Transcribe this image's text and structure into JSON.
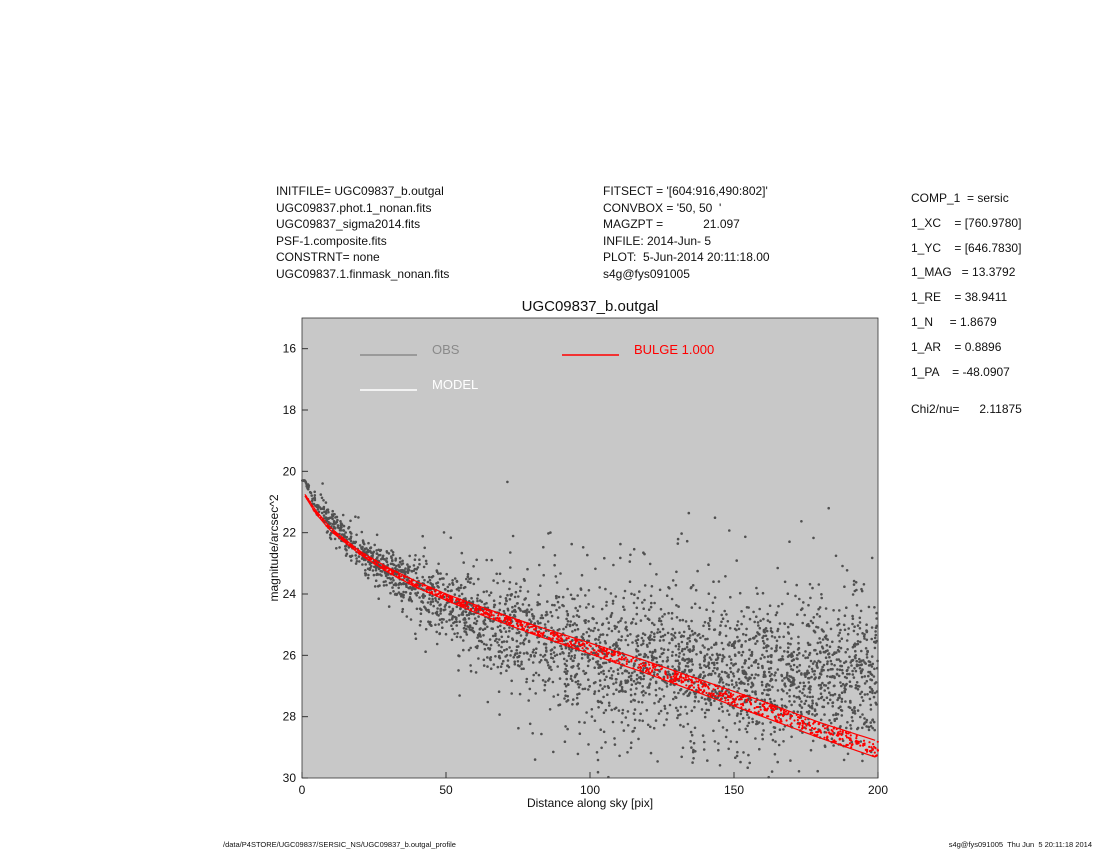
{
  "header_left": [
    "INITFILE= UGC09837_b.outgal",
    "UGC09837.phot.1_nonan.fits",
    "UGC09837_sigma2014.fits",
    "PSF-1.composite.fits",
    "CONSTRNT= none",
    "UGC09837.1.finmask_nonan.fits"
  ],
  "header_mid": [
    "FITSECT = '[604:916,490:802]'",
    "CONVBOX = '50, 50  '",
    "MAGZPT =            21.097",
    "INFILE: 2014-Jun- 5",
    "PLOT:  5-Jun-2014 20:11:18.00",
    "s4g@fys091005"
  ],
  "components": [
    "COMP_1  = sersic",
    "1_XC    = [760.9780]",
    "1_YC    = [646.7830]",
    "1_MAG   = 13.3792",
    "1_RE    = 38.9411",
    "1_N     = 1.8679",
    "1_AR    = 0.8896",
    "1_PA    = -48.0907"
  ],
  "chi2": "Chi2/nu=      2.11875",
  "footer_left": "/data/P4STORE/UGC09837/SERSIC_NS/UGC09837_b.outgal_profile",
  "footer_right": "s4g@fys091005  Thu Jun  5 20:11:18 2014",
  "colors": {
    "plot_bg": "#c8c8c8",
    "obs": "#505050",
    "obs_legend": "#8a8a8a",
    "model": "#ffffff",
    "bulge": "#ff0000"
  },
  "chart_data": {
    "type": "scatter",
    "title": "UGC09837_b.outgal",
    "xlabel": "Distance along sky [pix]",
    "ylabel": "magnitude/arcsec^2",
    "xlim": [
      0,
      200
    ],
    "ylim": [
      30,
      15
    ],
    "y_inverted": true,
    "xticks": [
      0,
      50,
      100,
      150,
      200
    ],
    "yticks": [
      16,
      18,
      20,
      22,
      24,
      26,
      28,
      30
    ],
    "grid": false,
    "legend": [
      {
        "name": "OBS",
        "color": "#8a8a8a"
      },
      {
        "name": "MODEL",
        "color": "#ffffff"
      },
      {
        "name": "BULGE  1.000",
        "color": "#ff0000"
      }
    ],
    "series": [
      {
        "name": "OBS",
        "description_points": "scattered pixel magnitudes around profile",
        "trend_x": [
          1,
          5,
          10,
          20,
          30,
          40,
          50,
          60,
          80,
          100,
          120,
          140,
          160,
          180,
          200
        ],
        "trend_y": [
          20.3,
          21.1,
          21.7,
          22.6,
          23.3,
          23.8,
          24.3,
          24.7,
          25.4,
          25.9,
          26.2,
          26.5,
          26.6,
          26.6,
          26.6
        ],
        "scatter_start": [
          0,
          0.2,
          0.3,
          0.4,
          0.5,
          0.6,
          0.8,
          1.0,
          1.3,
          1.5,
          1.6,
          1.6,
          1.6,
          1.6,
          1.6
        ]
      },
      {
        "name": "BULGE  1.000",
        "upper_x": [
          1,
          5,
          10,
          20,
          30,
          40,
          50,
          60,
          80,
          100,
          120,
          140,
          160,
          180,
          200
        ],
        "upper_y": [
          20.75,
          21.3,
          21.85,
          22.6,
          23.15,
          23.6,
          24.0,
          24.35,
          25.0,
          25.6,
          26.2,
          26.85,
          27.5,
          28.2,
          28.8
        ],
        "lower_x": [
          1,
          5,
          10,
          20,
          30,
          40,
          50,
          60,
          80,
          100,
          120,
          140,
          160,
          180,
          200
        ],
        "lower_y": [
          20.8,
          21.4,
          21.95,
          22.7,
          23.3,
          23.8,
          24.2,
          24.6,
          25.3,
          25.95,
          26.6,
          27.3,
          28.0,
          28.7,
          29.35
        ]
      }
    ]
  }
}
